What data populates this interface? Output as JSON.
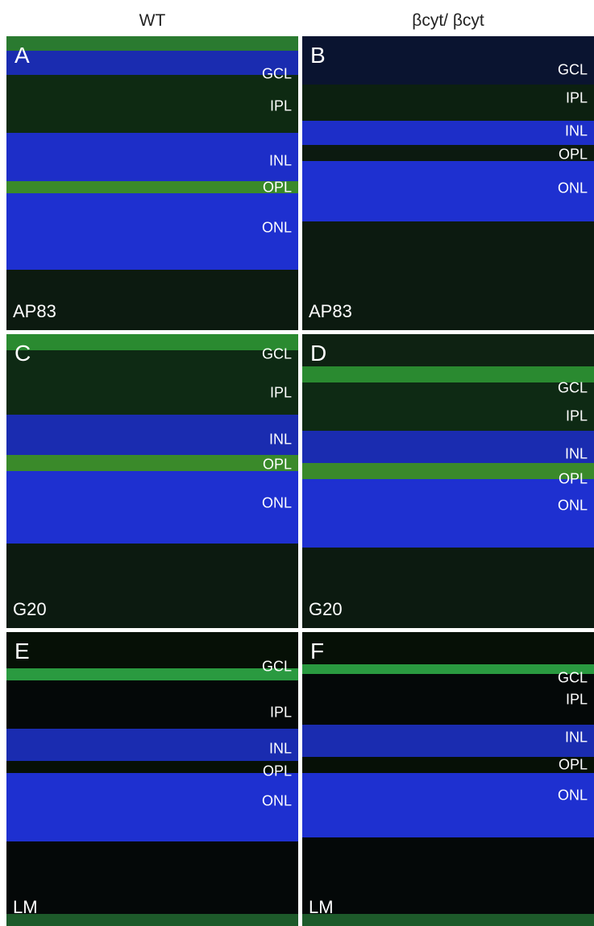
{
  "columns": [
    "WT",
    "βcyt/ βcyt"
  ],
  "panels": [
    {
      "letter": "A",
      "stain": "AP83",
      "layers": [
        "GCL",
        "IPL",
        "INL",
        "OPL",
        "ONL"
      ]
    },
    {
      "letter": "B",
      "stain": "AP83",
      "layers": [
        "GCL",
        "IPL",
        "INL",
        "OPL",
        "ONL"
      ]
    },
    {
      "letter": "C",
      "stain": "G20",
      "layers": [
        "GCL",
        "IPL",
        "INL",
        "OPL",
        "ONL"
      ]
    },
    {
      "letter": "D",
      "stain": "G20",
      "layers": [
        "GCL",
        "IPL",
        "INL",
        "OPL",
        "ONL"
      ]
    },
    {
      "letter": "E",
      "stain": "LM",
      "layers": [
        "GCL",
        "IPL",
        "INL",
        "OPL",
        "ONL"
      ]
    },
    {
      "letter": "F",
      "stain": "LM",
      "layers": [
        "GCL",
        "IPL",
        "INL",
        "OPL",
        "ONL"
      ]
    }
  ]
}
